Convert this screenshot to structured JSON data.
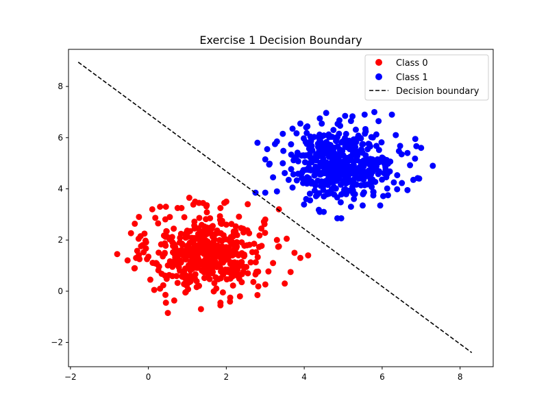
{
  "chart_data": {
    "type": "scatter",
    "title": "Exercise 1 Decision Boundary",
    "xlabel": "",
    "ylabel": "",
    "xlim": [
      -2.05,
      8.85
    ],
    "ylim": [
      -2.95,
      9.45
    ],
    "xticks": [
      -2,
      0,
      2,
      4,
      6,
      8
    ],
    "yticks": [
      -2,
      0,
      2,
      4,
      6,
      8
    ],
    "xtick_labels": [
      "−2",
      "0",
      "2",
      "4",
      "6",
      "8"
    ],
    "ytick_labels": [
      "−2",
      "0",
      "2",
      "4",
      "6",
      "8"
    ],
    "grid": false,
    "legend_position": "top-right",
    "series": [
      {
        "name": "Class 0",
        "kind": "scatter",
        "color": "#ff0000",
        "center": [
          1.5,
          1.5
        ],
        "spread": [
          0.72,
          0.72
        ],
        "count": 500,
        "points": [
          [
            -0.8,
            1.45
          ],
          [
            -0.35,
            0.9
          ],
          [
            -0.2,
            2.15
          ],
          [
            -0.1,
            2.25
          ],
          [
            -0.15,
            1.8
          ],
          [
            0.1,
            3.2
          ],
          [
            0.3,
            3.3
          ],
          [
            0.45,
            3.3
          ],
          [
            0.75,
            3.25
          ],
          [
            0.85,
            3.25
          ],
          [
            1.05,
            3.65
          ],
          [
            1.3,
            3.45
          ],
          [
            1.2,
            3.5
          ],
          [
            1.85,
            3.25
          ],
          [
            1.95,
            3.45
          ],
          [
            2.0,
            3.5
          ],
          [
            2.55,
            3.4
          ],
          [
            3.35,
            3.2
          ],
          [
            3.0,
            2.8
          ],
          [
            3.55,
            2.05
          ],
          [
            3.75,
            1.5
          ],
          [
            4.1,
            1.4
          ],
          [
            3.9,
            1.3
          ],
          [
            3.65,
            0.75
          ],
          [
            3.5,
            0.3
          ],
          [
            2.8,
            -0.15
          ],
          [
            2.35,
            -0.2
          ],
          [
            1.85,
            -0.45
          ],
          [
            1.85,
            -0.55
          ],
          [
            1.35,
            -0.7
          ],
          [
            0.5,
            -0.85
          ],
          [
            0.45,
            -0.45
          ],
          [
            0.3,
            0.1
          ],
          [
            0.05,
            0.45
          ],
          [
            0.15,
            0.05
          ],
          [
            3.35,
            1.75
          ],
          [
            3.3,
            2.0
          ],
          [
            2.9,
            2.45
          ],
          [
            0.55,
            2.9
          ],
          [
            0.25,
            2.65
          ],
          [
            0.0,
            1.35
          ],
          [
            0.2,
            1.1
          ],
          [
            3.2,
            1.1
          ],
          [
            2.1,
            -0.25
          ],
          [
            0.95,
            -0.05
          ]
        ]
      },
      {
        "name": "Class 1",
        "kind": "scatter",
        "color": "#0000ff",
        "center": [
          5.0,
          5.0
        ],
        "spread": [
          0.65,
          0.65
        ],
        "count": 500,
        "points": [
          [
            2.8,
            5.8
          ],
          [
            2.75,
            3.85
          ],
          [
            3.0,
            3.85
          ],
          [
            3.3,
            3.9
          ],
          [
            3.2,
            4.45
          ],
          [
            3.0,
            5.15
          ],
          [
            3.05,
            5.55
          ],
          [
            3.25,
            5.75
          ],
          [
            3.45,
            6.15
          ],
          [
            3.7,
            6.35
          ],
          [
            3.9,
            6.55
          ],
          [
            4.05,
            6.4
          ],
          [
            4.45,
            6.55
          ],
          [
            4.4,
            6.75
          ],
          [
            4.75,
            6.3
          ],
          [
            5.2,
            6.65
          ],
          [
            5.55,
            6.9
          ],
          [
            5.8,
            7.0
          ],
          [
            6.25,
            6.9
          ],
          [
            6.35,
            6.1
          ],
          [
            6.85,
            5.95
          ],
          [
            7.0,
            5.6
          ],
          [
            7.3,
            4.9
          ],
          [
            6.95,
            4.4
          ],
          [
            6.8,
            4.35
          ],
          [
            6.65,
            3.95
          ],
          [
            6.15,
            3.75
          ],
          [
            5.95,
            3.35
          ],
          [
            5.5,
            3.35
          ],
          [
            5.2,
            3.3
          ],
          [
            4.95,
            2.85
          ],
          [
            4.85,
            2.85
          ],
          [
            4.5,
            3.1
          ],
          [
            4.4,
            3.1
          ],
          [
            4.15,
            3.55
          ],
          [
            3.6,
            4.35
          ],
          [
            3.7,
            4.05
          ],
          [
            3.45,
            5.0
          ],
          [
            3.1,
            4.95
          ],
          [
            6.5,
            5.35
          ],
          [
            6.3,
            4.25
          ],
          [
            4.05,
            3.6
          ],
          [
            5.05,
            6.85
          ],
          [
            3.3,
            5.85
          ],
          [
            6.65,
            5.4
          ]
        ]
      },
      {
        "name": "Decision boundary",
        "kind": "line",
        "color": "#000000",
        "dash": "dashed",
        "x": [
          -1.8,
          8.3
        ],
        "y": [
          8.95,
          -2.4
        ]
      }
    ]
  }
}
